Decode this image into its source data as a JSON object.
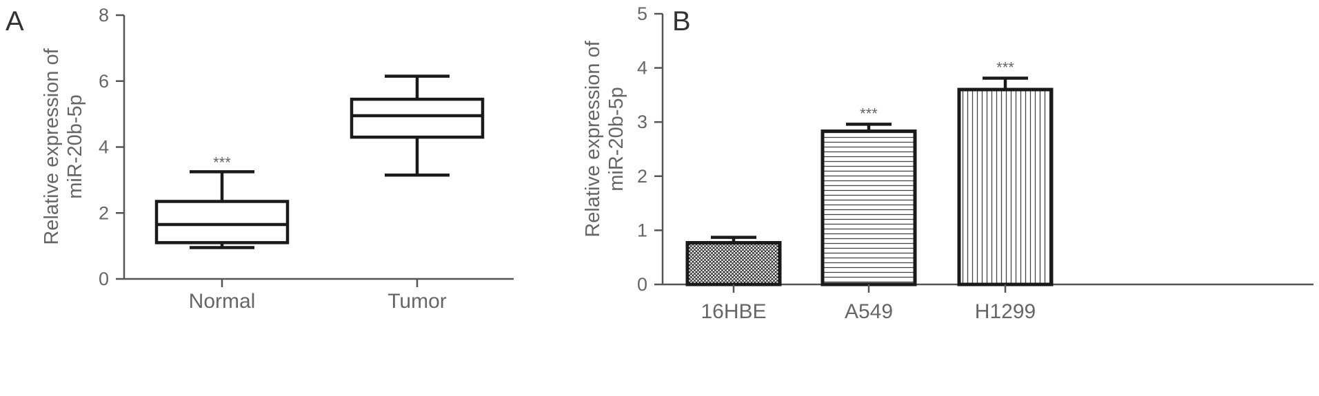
{
  "chart_data": [
    {
      "panel": "A",
      "type": "box",
      "ylabel_lines": [
        "Relative expression of",
        "miR-20b-5p"
      ],
      "ylim": [
        0,
        8
      ],
      "yticks": [
        0,
        2,
        4,
        6,
        8
      ],
      "categories": [
        "Normal",
        "Tumor"
      ],
      "boxes": [
        {
          "category": "Normal",
          "min": 0.95,
          "q1": 1.1,
          "median": 1.65,
          "q3": 2.35,
          "max": 3.25,
          "annotation": "***"
        },
        {
          "category": "Tumor",
          "min": 3.15,
          "q1": 4.3,
          "median": 4.95,
          "q3": 5.45,
          "max": 6.15,
          "annotation": ""
        }
      ]
    },
    {
      "panel": "B",
      "type": "bar",
      "ylabel_lines": [
        "Relative expression of",
        "miR-20b-5p"
      ],
      "ylim": [
        0,
        5
      ],
      "yticks": [
        0,
        1,
        2,
        3,
        4,
        5
      ],
      "categories": [
        "16HBE",
        "A549",
        "H1299"
      ],
      "values": [
        0.77,
        2.83,
        3.6
      ],
      "errors": [
        0.1,
        0.13,
        0.21
      ],
      "patterns": [
        "crosshatch",
        "horizontal-lines",
        "vertical-lines"
      ],
      "annotations": [
        "",
        "***",
        "***"
      ]
    }
  ]
}
